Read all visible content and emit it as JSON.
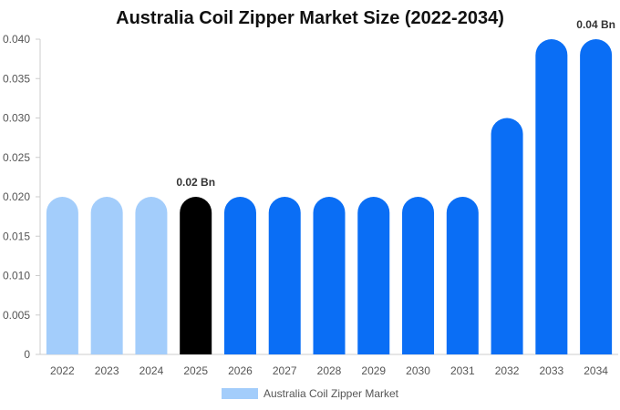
{
  "chart_data": {
    "type": "bar",
    "title": "Australia Coil Zipper Market Size (2022-2034)",
    "xlabel": "",
    "ylabel": "",
    "categories": [
      "2022",
      "2023",
      "2024",
      "2025",
      "2026",
      "2027",
      "2028",
      "2029",
      "2030",
      "2031",
      "2032",
      "2033",
      "2034"
    ],
    "series": [
      {
        "name": "Australia Coil Zipper Market",
        "values": [
          0.02,
          0.02,
          0.02,
          0.02,
          0.02,
          0.02,
          0.02,
          0.02,
          0.02,
          0.02,
          0.03,
          0.04,
          0.04
        ]
      }
    ],
    "ylim": [
      0,
      0.04
    ],
    "yticks": [
      "0",
      "0.005",
      "0.010",
      "0.015",
      "0.020",
      "0.025",
      "0.030",
      "0.035",
      "0.040"
    ],
    "data_labels": [
      {
        "category": "2025",
        "text": "0.02 Bn"
      },
      {
        "category": "2034",
        "text": "0.04 Bn"
      }
    ],
    "bar_colors": [
      "#a3cdfb",
      "#a3cdfb",
      "#a3cdfb",
      "#000000",
      "#0a6ef5",
      "#0a6ef5",
      "#0a6ef5",
      "#0a6ef5",
      "#0a6ef5",
      "#0a6ef5",
      "#0a6ef5",
      "#0a6ef5",
      "#0a6ef5"
    ],
    "legend": {
      "label": "Australia Coil Zipper Market",
      "color": "#a3cdfb",
      "position": "bottom-center"
    },
    "grid": false
  }
}
